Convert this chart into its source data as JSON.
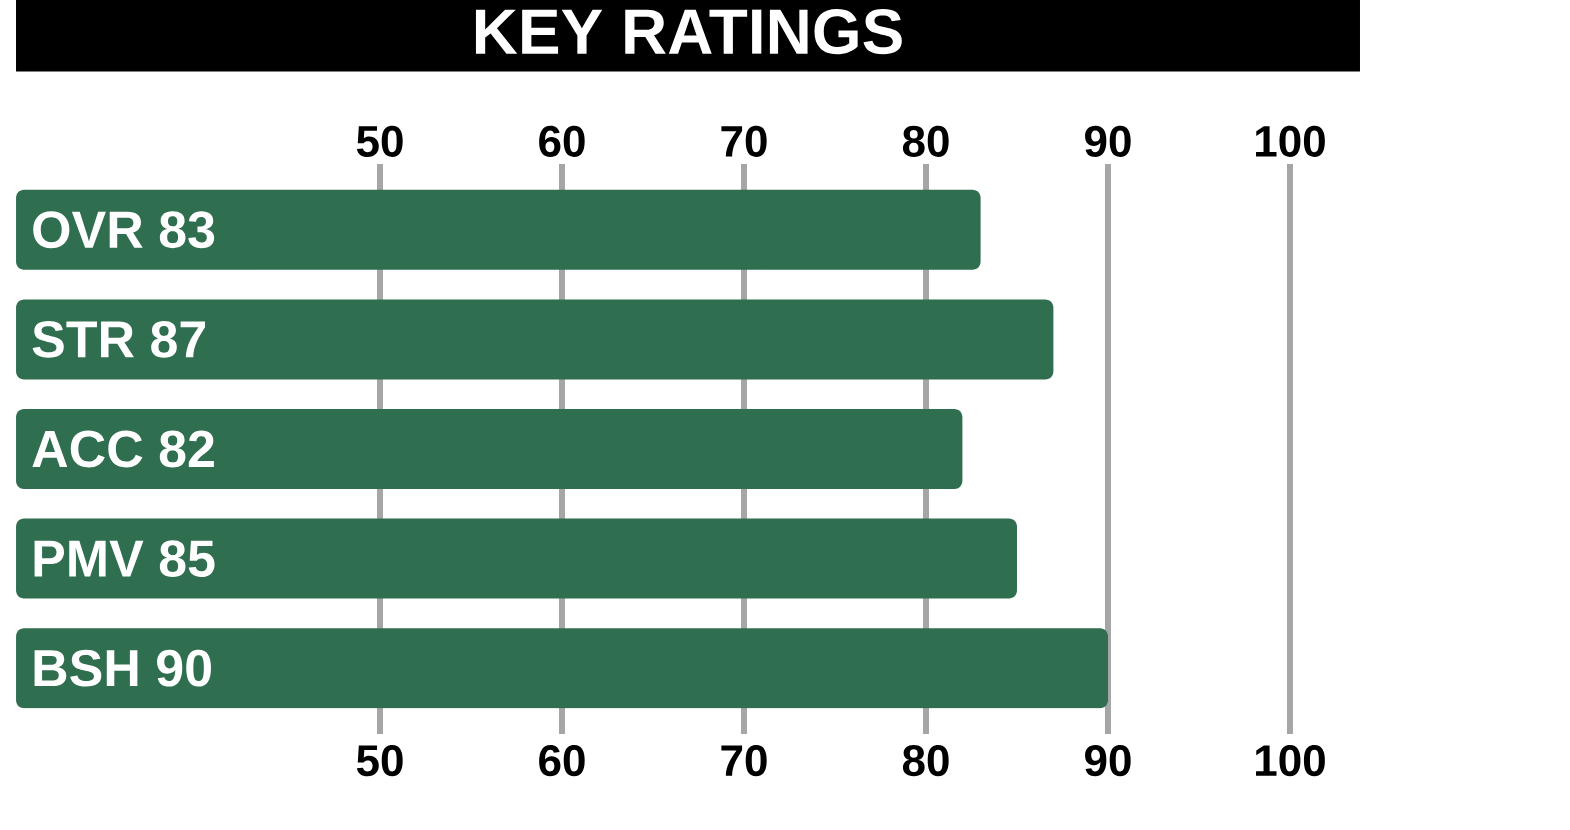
{
  "chart_data": {
    "type": "bar",
    "orientation": "horizontal",
    "title": "KEY RATINGS",
    "categories": [
      "OVR 83",
      "STR 87",
      "ACC 82",
      "PMV 85",
      "BSH 90"
    ],
    "values": [
      83,
      87,
      82,
      85,
      90
    ],
    "color": "#2f6e4f",
    "xlim": [
      30,
      100
    ],
    "xticks": [
      50,
      60,
      70,
      80,
      90,
      100
    ],
    "x2lim": [
      30,
      100
    ],
    "x2ticks": [
      50,
      60,
      70,
      80,
      90,
      100
    ],
    "grid": "x"
  }
}
